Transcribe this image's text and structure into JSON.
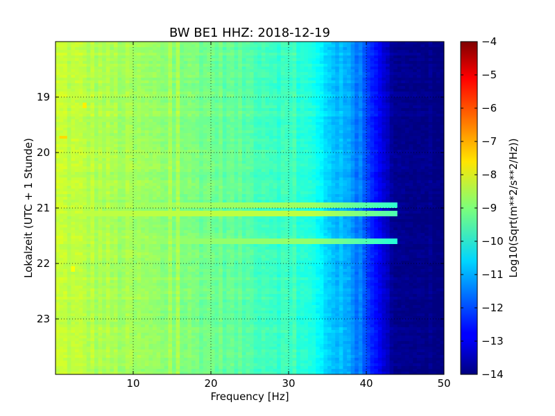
{
  "chart_data": {
    "type": "heatmap",
    "title": "BW BE1 HHZ: 2018-12-19",
    "xlabel": "Frequency [Hz]",
    "ylabel": "Lokalzeit (UTC + 1 Stunde)",
    "colorbar_label": "Log10(Sqrt(m**2/s**2/Hz))",
    "colormap": "jet",
    "xlim": [
      0,
      50
    ],
    "ylim": [
      24,
      18
    ],
    "clim": [
      -14,
      -4
    ],
    "grid": true,
    "x_ticks": [
      10,
      20,
      30,
      40,
      50
    ],
    "x_tick_labels": [
      "10",
      "20",
      "30",
      "40",
      "50"
    ],
    "y_ticks": [
      19,
      20,
      21,
      22,
      23
    ],
    "y_tick_labels": [
      "19",
      "20",
      "21",
      "22",
      "23"
    ],
    "colorbar_ticks": [
      -4,
      -5,
      -6,
      -7,
      -8,
      -9,
      -10,
      -11,
      -12,
      -13,
      -14
    ],
    "colorbar_tick_labels": [
      "−4",
      "−5",
      "−6",
      "−7",
      "−8",
      "−9",
      "−10",
      "−11",
      "−12",
      "−13",
      "−14"
    ],
    "spectrum_profile": [
      {
        "frequency_hz": 0.5,
        "level": -8.3
      },
      {
        "frequency_hz": 5,
        "level": -8.5
      },
      {
        "frequency_hz": 10,
        "level": -8.7
      },
      {
        "frequency_hz": 15,
        "level": -8.9
      },
      {
        "frequency_hz": 20,
        "level": -9.1
      },
      {
        "frequency_hz": 25,
        "level": -9.4
      },
      {
        "frequency_hz": 30,
        "level": -9.7
      },
      {
        "frequency_hz": 33,
        "level": -10.0
      },
      {
        "frequency_hz": 35,
        "level": -10.6
      },
      {
        "frequency_hz": 38,
        "level": -11.2
      },
      {
        "frequency_hz": 40,
        "level": -12.0
      },
      {
        "frequency_hz": 42,
        "level": -13.0
      },
      {
        "frequency_hz": 43.5,
        "level": -13.8
      },
      {
        "frequency_hz": 50,
        "level": -14.0
      }
    ],
    "bands": [
      {
        "time_h": 20.95,
        "freq_range_hz": [
          0,
          44
        ],
        "level": -8.7
      },
      {
        "time_h": 21.1,
        "freq_range_hz": [
          0,
          44
        ],
        "level": -8.4
      },
      {
        "time_h": 21.6,
        "freq_range_hz": [
          0,
          44
        ],
        "level": -8.8
      }
    ],
    "hotspots": [
      {
        "time_h": 19.15,
        "frequency_hz": 3.8,
        "level": -7.6
      },
      {
        "time_h": 19.73,
        "frequency_hz": 0.9,
        "level": -7.4
      },
      {
        "time_h": 22.1,
        "frequency_hz": 2.2,
        "level": -7.8
      }
    ]
  }
}
